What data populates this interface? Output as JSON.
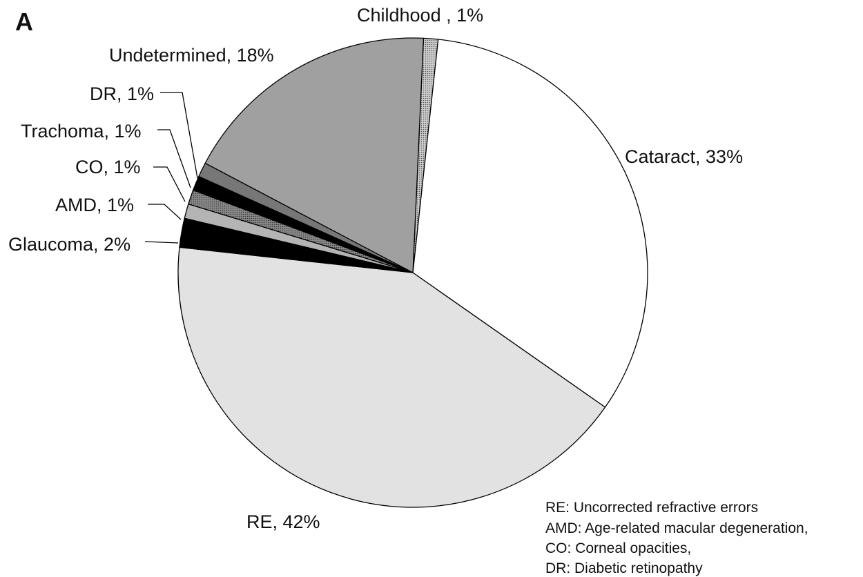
{
  "panel_label": "A",
  "chart_data": {
    "type": "pie",
    "slices": [
      {
        "label": "Childhood",
        "value": 1,
        "text": "Childhood , 1%",
        "fill": "pattern-dots"
      },
      {
        "label": "Cataract",
        "value": 33,
        "text": "Cataract, 33%",
        "fill": "#ffffff"
      },
      {
        "label": "RE",
        "value": 42,
        "text": "RE, 42%",
        "fill": "pattern-light"
      },
      {
        "label": "Glaucoma",
        "value": 2,
        "text": "Glaucoma, 2%",
        "fill": "#000000"
      },
      {
        "label": "AMD",
        "value": 1,
        "text": "AMD, 1%",
        "fill": "#b4b4b4"
      },
      {
        "label": "CO",
        "value": 1,
        "text": "CO, 1%",
        "fill": "pattern-dark"
      },
      {
        "label": "Trachoma",
        "value": 1,
        "text": "Trachoma, 1%",
        "fill": "#000000"
      },
      {
        "label": "DR",
        "value": 1,
        "text": "DR, 1%",
        "fill": "#777777"
      },
      {
        "label": "Undetermined",
        "value": 18,
        "text": "Undetermined, 18%",
        "fill": "#a0a0a0"
      }
    ]
  },
  "abbreviations": [
    "RE: Uncorrected refractive errors",
    "AMD: Age-related macular degeneration,",
    "CO: Corneal opacities,",
    "DR: Diabetic retinopathy"
  ],
  "colors": {
    "outline": "#000000",
    "cataract": "#ffffff",
    "undetermined": "#a0a0a0",
    "re_base": "#e6e6e6"
  }
}
